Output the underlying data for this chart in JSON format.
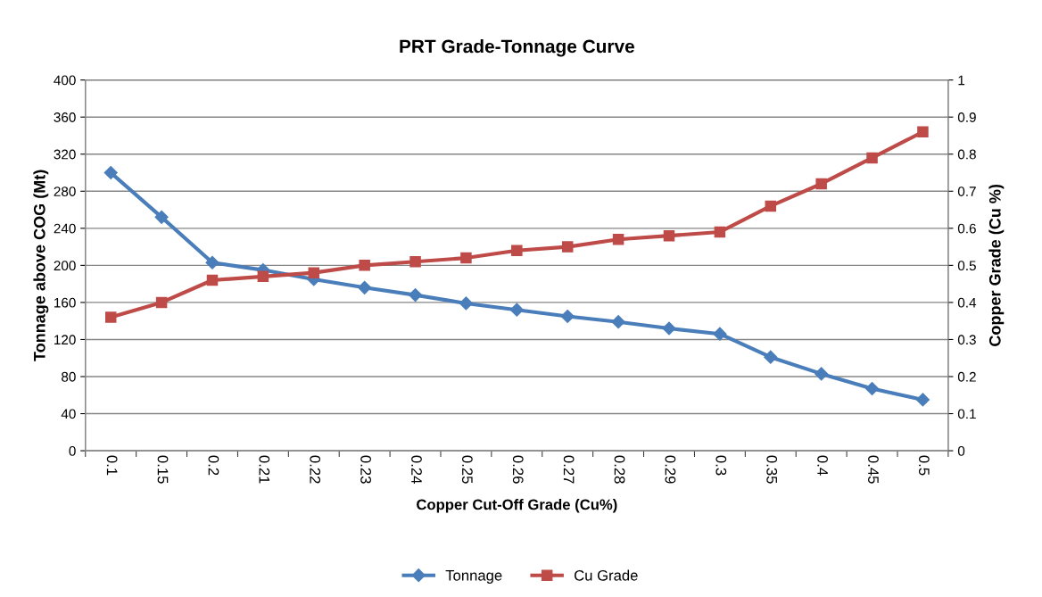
{
  "chart_data": {
    "type": "line",
    "title": "PRT Grade-Tonnage Curve",
    "xlabel": "Copper Cut-Off Grade (Cu%)",
    "ylabel": "Tonnage above COG (Mt)",
    "y2label": "Copper Grade (Cu %)",
    "categories": [
      "0.1",
      "0.15",
      "0.2",
      "0.21",
      "0.22",
      "0.23",
      "0.24",
      "0.25",
      "0.26",
      "0.27",
      "0.28",
      "0.29",
      "0.3",
      "0.35",
      "0.4",
      "0.45",
      "0.5"
    ],
    "series": [
      {
        "name": "Tonnage",
        "color": "#4a7ebb",
        "marker": "diamond",
        "values": [
          300,
          252,
          203,
          195,
          185,
          176,
          168,
          159,
          152,
          145,
          139,
          132,
          126,
          101,
          83,
          67,
          55
        ]
      },
      {
        "name": "Cu Grade",
        "color": "#be4b48",
        "marker": "square",
        "axis": "y2",
        "values": [
          0.36,
          0.4,
          0.46,
          0.47,
          0.48,
          0.5,
          0.51,
          0.52,
          0.54,
          0.55,
          0.57,
          0.58,
          0.59,
          0.66,
          0.72,
          0.79,
          0.86
        ]
      }
    ],
    "ylim": [
      0,
      400
    ],
    "yticks": [
      0,
      40,
      80,
      120,
      160,
      200,
      240,
      280,
      320,
      360,
      400
    ],
    "y2lim": [
      0,
      1
    ],
    "y2ticks": [
      0,
      0.1,
      0.2,
      0.3,
      0.4,
      0.5,
      0.6,
      0.7,
      0.8,
      0.9,
      1
    ],
    "grid": "y",
    "legend": "bottom",
    "line_style": "solid"
  }
}
